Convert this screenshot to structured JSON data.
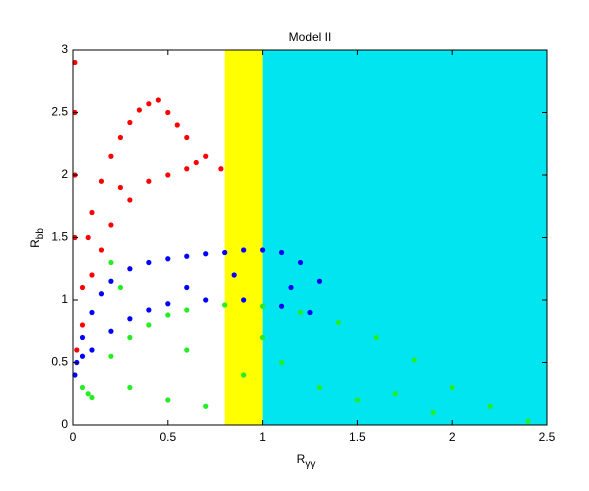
{
  "chart_data": {
    "type": "scatter",
    "title": "Model II",
    "xlabel": {
      "main": "R",
      "sub": "γγ"
    },
    "ylabel": {
      "main": "R",
      "sub": "bb"
    },
    "xlim": [
      0,
      2.5
    ],
    "ylim": [
      0,
      3
    ],
    "xticks": [
      0,
      0.5,
      1,
      1.5,
      2,
      2.5
    ],
    "yticks": [
      0,
      0.5,
      1,
      1.5,
      2,
      2.5,
      3
    ],
    "bands": [
      {
        "x0": 0.8,
        "x1": 1.0,
        "color": "#ffff00"
      },
      {
        "x0": 1.0,
        "x1": 2.5,
        "color": "#00e5f0"
      }
    ],
    "series": [
      {
        "color": "#ff0000",
        "x": [
          0.01,
          0.01,
          0.01,
          0.01,
          0.02,
          0.05,
          0.08,
          0.1,
          0.15,
          0.2,
          0.25,
          0.3,
          0.35,
          0.4,
          0.45,
          0.5,
          0.55,
          0.6,
          0.7,
          0.78,
          0.1,
          0.15,
          0.2,
          0.3,
          0.4,
          0.5,
          0.6,
          0.05,
          0.25,
          0.65
        ],
        "values": [
          2.9,
          2.5,
          2.0,
          1.5,
          0.6,
          1.1,
          1.5,
          1.7,
          1.95,
          2.15,
          2.3,
          2.42,
          2.52,
          2.57,
          2.6,
          2.5,
          2.4,
          2.3,
          2.15,
          2.05,
          1.2,
          1.4,
          1.6,
          1.8,
          1.95,
          2.0,
          2.05,
          0.8,
          1.9,
          2.1
        ]
      },
      {
        "color": "#0000ff",
        "x": [
          0.01,
          0.02,
          0.05,
          0.1,
          0.15,
          0.2,
          0.3,
          0.4,
          0.5,
          0.6,
          0.7,
          0.8,
          0.9,
          1.0,
          1.1,
          1.2,
          1.3,
          0.1,
          0.2,
          0.3,
          0.4,
          0.5,
          0.7,
          0.9,
          1.1,
          1.25,
          0.05,
          0.6,
          0.85,
          1.15
        ],
        "values": [
          0.4,
          0.5,
          0.7,
          0.9,
          1.05,
          1.15,
          1.25,
          1.3,
          1.33,
          1.35,
          1.37,
          1.38,
          1.4,
          1.4,
          1.38,
          1.3,
          1.15,
          0.6,
          0.75,
          0.85,
          0.92,
          0.97,
          1.0,
          1.0,
          0.95,
          0.9,
          0.55,
          1.1,
          1.2,
          1.1
        ]
      },
      {
        "color": "#22ee22",
        "x": [
          0.05,
          0.08,
          0.1,
          0.2,
          0.3,
          0.4,
          0.5,
          0.6,
          0.8,
          1.0,
          1.2,
          1.4,
          1.6,
          1.8,
          2.0,
          2.2,
          2.4,
          0.3,
          0.5,
          0.7,
          0.9,
          1.1,
          1.3,
          1.5,
          1.7,
          0.2,
          0.25,
          0.6,
          1.0,
          1.9
        ],
        "values": [
          0.3,
          0.25,
          0.22,
          0.55,
          0.7,
          0.8,
          0.88,
          0.92,
          0.96,
          0.95,
          0.9,
          0.82,
          0.7,
          0.52,
          0.3,
          0.15,
          0.03,
          0.3,
          0.2,
          0.15,
          0.4,
          0.5,
          0.3,
          0.2,
          0.25,
          1.3,
          1.1,
          0.6,
          0.7,
          0.1
        ]
      }
    ]
  }
}
